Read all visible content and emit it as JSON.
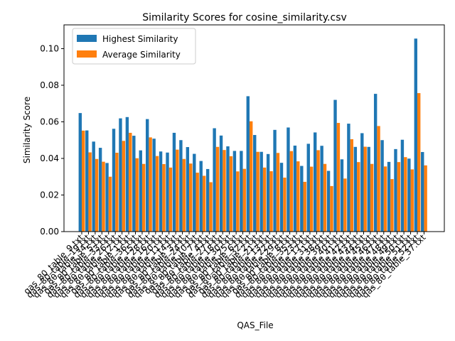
{
  "chart_data": {
    "type": "bar",
    "title": "Similarity Scores for cosine_similarity.csv",
    "xlabel": "QAS_File",
    "ylabel": "Similarity Score",
    "ylim": [
      0,
      0.113
    ],
    "yticks": [
      "0.00",
      "0.02",
      "0.04",
      "0.06",
      "0.08",
      "0.10"
    ],
    "grid": false,
    "legend_position": "top-left",
    "categories": [
      "qas_80_table_9.txt",
      "qas_80_table_19.txt",
      "qas_80_table_34.txt",
      "qas_80_table_5.txt",
      "qas_80_table_33.txt",
      "qas_80_table_26.txt",
      "qas_80_table_12.txt",
      "qas_80_table_1.txt",
      "qas_80_table_36.txt",
      "qas_80_table_15.txt",
      "qas_80_table_28.txt",
      "qas_80_table_16.txt",
      "qas_80_table_20.txt",
      "qas_80_table_11.txt",
      "qas_80_table_14.txt",
      "qas_80_table_3.txt",
      "qas_80_table_24.txt",
      "qas_80_table_10.txt",
      "qas_80_table_7.txt",
      "qas_80_table_4.txt",
      "qas_80_table_27.txt",
      "qas_80_table_18.txt",
      "qas_80_table_30.txt",
      "qas_80_table_25.txt",
      "qas_80_table_6.txt",
      "qas_80_table_32.txt",
      "qas_80_table_2.txt",
      "qas_80_table_21.txt",
      "qas_80_table_13.txt",
      "qas_80_table_22.txt",
      "qas_80_table_29.txt",
      "qas_80_table_8.txt",
      "qas_80_table_35.txt",
      "qas_80_table_23.txt",
      "qas_80_table_17.txt",
      "qas_80_table_31.txt",
      "qas_80_table_38.txt",
      "qas_80_table_39.txt",
      "qas_80_table_40.txt",
      "qas_80_table_41.txt",
      "qas_80_table_42.txt",
      "qas_80_table_43.txt",
      "qas_80_table_44.txt",
      "qas_80_table_45.txt",
      "qas_80_table_46.txt",
      "qas_80_table_47.txt",
      "qas_80_table_48.txt",
      "qas_80_table_49.txt",
      "qas_80_table_50.txt",
      "qas_80_table_51.txt",
      "qas_80_table_52.txt",
      "qas_80_table_37.txt"
    ],
    "series": [
      {
        "name": "Highest Similarity",
        "color": "#1f77b4",
        "values": [
          0.0648,
          0.0553,
          0.0492,
          0.0458,
          0.0375,
          0.0562,
          0.0619,
          0.0626,
          0.0524,
          0.0444,
          0.0615,
          0.0508,
          0.0438,
          0.0432,
          0.054,
          0.05,
          0.0462,
          0.0425,
          0.0386,
          0.0342,
          0.0565,
          0.0525,
          0.0466,
          0.0441,
          0.0441,
          0.074,
          0.0528,
          0.0436,
          0.0424,
          0.0556,
          0.0376,
          0.0569,
          0.047,
          0.0359,
          0.048,
          0.0542,
          0.0469,
          0.0332,
          0.072,
          0.0395,
          0.059,
          0.0463,
          0.0538,
          0.0463,
          0.0753,
          0.05,
          0.0381,
          0.0451,
          0.0502,
          0.0399,
          0.1055,
          0.0435
        ]
      },
      {
        "name": "Average Similarity",
        "color": "#ff7f0e",
        "values": [
          0.0552,
          0.0433,
          0.0397,
          0.0382,
          0.03,
          0.0431,
          0.0496,
          0.054,
          0.0401,
          0.037,
          0.0515,
          0.0413,
          0.0369,
          0.035,
          0.0448,
          0.0397,
          0.0372,
          0.0322,
          0.0305,
          0.027,
          0.0463,
          0.0446,
          0.0412,
          0.0329,
          0.0343,
          0.0603,
          0.0436,
          0.035,
          0.033,
          0.043,
          0.0295,
          0.044,
          0.0384,
          0.0272,
          0.0355,
          0.0445,
          0.037,
          0.0249,
          0.0594,
          0.029,
          0.0505,
          0.038,
          0.0464,
          0.037,
          0.0577,
          0.0356,
          0.0287,
          0.038,
          0.0407,
          0.034,
          0.0757,
          0.0362
        ]
      }
    ]
  }
}
